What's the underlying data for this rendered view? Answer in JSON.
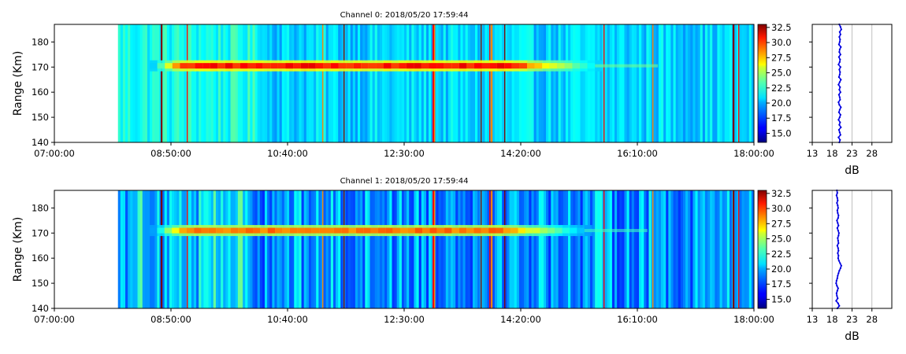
{
  "chart_data": [
    {
      "type": "heatmap",
      "title": "Channel 0: 2018/05/20 17:59:44",
      "xlabel": "",
      "ylabel": "Range (Km)",
      "x_ticks": [
        "07:00:00",
        "08:50:00",
        "10:40:00",
        "12:30:00",
        "14:20:00",
        "16:10:00",
        "18:00:00"
      ],
      "x_range": [
        "07:00:00",
        "18:00:00"
      ],
      "data_start": "08:00:00",
      "y_ticks": [
        140,
        150,
        160,
        170,
        180
      ],
      "ylim": [
        140,
        187
      ],
      "colorbar": {
        "colormap": "jet",
        "min": 13.5,
        "max": 33,
        "ticks": [
          "15.0",
          "17.5",
          "20.0",
          "22.5",
          "25.0",
          "27.5",
          "30.0",
          "32.5"
        ]
      },
      "echo_band": {
        "range_km": 170.5,
        "start": "08:30:00",
        "end": "15:30:00",
        "peak_db": 31
      },
      "background_db": 20,
      "profile": {
        "xlabel": "dB",
        "x_ticks": [
          13,
          18,
          23,
          28
        ],
        "xlim": [
          13,
          33
        ],
        "ranges_km": [
          140,
          141,
          142,
          143,
          144,
          145,
          146,
          147,
          148,
          149,
          150,
          151,
          152,
          153,
          154,
          155,
          156,
          157,
          158,
          159,
          160,
          161,
          162,
          163,
          164,
          165,
          166,
          167,
          168,
          169,
          170,
          171,
          172,
          173,
          174,
          175,
          176,
          177,
          178,
          179,
          180,
          181,
          182,
          183,
          184,
          185,
          186,
          187
        ],
        "values_db": [
          19.8,
          20.0,
          19.6,
          20.1,
          19.9,
          19.7,
          20.2,
          19.8,
          20.0,
          19.6,
          19.9,
          20.1,
          19.7,
          19.9,
          20.2,
          19.8,
          19.6,
          20.0,
          19.9,
          19.7,
          20.1,
          19.8,
          20.0,
          19.6,
          19.9,
          20.2,
          19.7,
          19.9,
          20.0,
          19.8,
          20.1,
          19.6,
          19.9,
          20.0,
          19.7,
          20.1,
          19.8,
          19.9,
          20.2,
          19.7,
          19.9,
          20.0,
          19.8,
          20.1,
          19.9,
          20.3,
          20.1,
          19.8
        ]
      }
    },
    {
      "type": "heatmap",
      "title": "Channel 1: 2018/05/20 17:59:44",
      "xlabel": "",
      "ylabel": "Range (Km)",
      "x_ticks": [
        "07:00:00",
        "08:50:00",
        "10:40:00",
        "12:30:00",
        "14:20:00",
        "16:10:00",
        "18:00:00"
      ],
      "x_range": [
        "07:00:00",
        "18:00:00"
      ],
      "data_start": "08:00:00",
      "y_ticks": [
        140,
        150,
        160,
        170,
        180
      ],
      "ylim": [
        140,
        187
      ],
      "colorbar": {
        "colormap": "jet",
        "min": 13.5,
        "max": 33,
        "ticks": [
          "15.0",
          "17.5",
          "20.0",
          "22.5",
          "25.0",
          "27.5",
          "30.0",
          "32.5"
        ]
      },
      "echo_band": {
        "range_km": 171,
        "start": "08:30:00",
        "end": "15:20:00",
        "peak_db": 29
      },
      "background_db": 19,
      "profile": {
        "xlabel": "dB",
        "x_ticks": [
          13,
          18,
          23,
          28
        ],
        "xlim": [
          13,
          33
        ],
        "ranges_km": [
          140,
          141,
          142,
          143,
          144,
          145,
          146,
          147,
          148,
          149,
          150,
          151,
          152,
          153,
          154,
          155,
          156,
          157,
          158,
          159,
          160,
          161,
          162,
          163,
          164,
          165,
          166,
          167,
          168,
          169,
          170,
          171,
          172,
          173,
          174,
          175,
          176,
          177,
          178,
          179,
          180,
          181,
          182,
          183,
          184,
          185,
          186,
          187
        ],
        "values_db": [
          19.3,
          19.8,
          19.5,
          19.0,
          19.4,
          19.2,
          19.1,
          19.3,
          19.5,
          19.2,
          19.0,
          19.1,
          19.3,
          19.4,
          19.6,
          19.8,
          20.1,
          20.3,
          20.0,
          19.7,
          19.5,
          19.6,
          19.4,
          19.6,
          19.5,
          19.3,
          19.6,
          19.5,
          19.4,
          19.6,
          19.7,
          19.5,
          19.3,
          19.6,
          19.4,
          19.2,
          19.5,
          19.6,
          19.4,
          19.3,
          19.5,
          19.4,
          19.2,
          19.4,
          19.3,
          19.1,
          19.3,
          19.2
        ]
      }
    }
  ]
}
